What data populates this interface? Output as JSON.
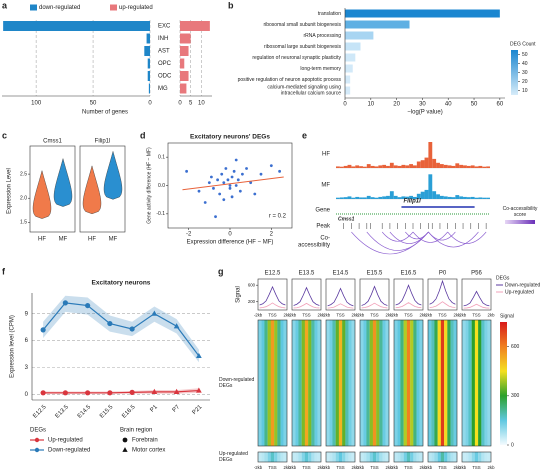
{
  "chart_data": [
    {
      "panel": "a",
      "type": "diverging_bar",
      "categories": [
        "EXC",
        "INH",
        "AST",
        "OPC",
        "ODC",
        "MG"
      ],
      "series": [
        {
          "name": "down-regulated",
          "color": "#1f86c8",
          "values": [
            129,
            3,
            5,
            2,
            2,
            1
          ]
        },
        {
          "name": "up-regulated",
          "color": "#e8787c",
          "values": [
            14,
            5,
            4,
            2,
            4,
            3
          ]
        }
      ],
      "xlim": [
        0,
        130
      ],
      "xticks": [
        100,
        50,
        0
      ],
      "x2lim": [
        0,
        15
      ],
      "x2ticks": [
        0,
        5,
        10
      ],
      "xlabel": "Number of genes"
    },
    {
      "panel": "b",
      "type": "hbar",
      "categories": [
        "translation",
        "ribosomal small subunit biogenesis",
        "rRNA processing",
        "ribosomal large subunit biogenesis",
        "regulation of neuronal synaptic plasticity",
        "long-term memory",
        "positive regulation of neuron apoptotic process",
        "calcium-mediated signaling using intracellular calcium source"
      ],
      "values": [
        60,
        25,
        11,
        6,
        4,
        3,
        2,
        2
      ],
      "colors": [
        "#1a86d0",
        "#5fb0e3",
        "#a8d5f2",
        "#c6e4f7",
        "#cfe8f8",
        "#d2e9f8",
        "#d4eaf9",
        "#d4eaf9"
      ],
      "xlim": [
        0,
        62
      ],
      "xticks": [
        0,
        10,
        20,
        30,
        40,
        50,
        60
      ],
      "xlabel": "−log(P value)",
      "legend_title": "DEG Count",
      "legend_ticks": [
        50,
        40,
        30,
        20,
        10
      ],
      "legend_lim": [
        5,
        55
      ],
      "legend_colors": [
        "#d6ecf9",
        "#1a86d0"
      ]
    },
    {
      "panel": "c",
      "type": "violin",
      "ylabel": "Expression Level",
      "groups": [
        "HF",
        "MF"
      ],
      "colors": [
        "#f07a4a",
        "#2a8fd0"
      ],
      "genes": [
        {
          "name": "Cmss1",
          "values": [
            1.95,
            2.2
          ]
        },
        {
          "name": "Filip1l",
          "values": [
            2.05,
            2.35
          ]
        }
      ],
      "ylim": [
        1.3,
        3.0
      ],
      "yticks": [
        1.5,
        {
          "value": 2,
          "label": "2.0"
        },
        2.5
      ]
    },
    {
      "panel": "d",
      "type": "scatter",
      "title": "Excitatory neurons' DEGs",
      "xlabel": "Expression difference (HF − MF)",
      "ylabel": "Gene activity difference (HF − MF)",
      "annotation": "r = 0.2",
      "color": "#3b6fd0",
      "x": [
        -2.1,
        -1.5,
        -1.2,
        -0.9,
        -0.8,
        -0.6,
        -0.5,
        -0.4,
        -0.3,
        -0.3,
        -0.2,
        -0.1,
        0,
        0.1,
        0.1,
        0.2,
        0.3,
        0.4,
        0.5,
        0.6,
        0.8,
        1.0,
        1.2,
        1.5,
        2.0,
        2.4,
        -0.7,
        0.3,
        -1.0,
        0.0
      ],
      "y": [
        0.05,
        -0.02,
        -0.06,
        0.03,
        -0.01,
        0.02,
        -0.03,
        0.04,
        0.01,
        -0.05,
        0.06,
        0.02,
        -0.01,
        0.03,
        -0.04,
        0.05,
        0.0,
        0.02,
        -0.02,
        0.04,
        0.06,
        0.01,
        -0.03,
        0.04,
        0.07,
        0.05,
        -0.11,
        0.09,
        0.01,
        0.0
      ],
      "trend": {
        "x": [
          -2.3,
          2.6
        ],
        "y": [
          -0.015,
          0.03
        ],
        "color": "#e8623a"
      },
      "xlim": [
        -3,
        3
      ],
      "xticks": [
        -2,
        0,
        2
      ],
      "ylim": [
        -0.15,
        0.15
      ],
      "yticks": [
        -0.1,
        {
          "value": 0,
          "label": "0.0"
        },
        0.1
      ]
    },
    {
      "panel": "e",
      "type": "track",
      "xlim": [
        0,
        40
      ],
      "ylim": [
        0,
        1
      ],
      "tracks": [
        {
          "name": "HF",
          "color": "#e8623a",
          "values": [
            0.06,
            0.05,
            0.08,
            0.12,
            0.06,
            0.1,
            0.07,
            0.05,
            0.15,
            0.08,
            0.06,
            0.1,
            0.12,
            0.08,
            0.2,
            0.1,
            0.08,
            0.12,
            0.1,
            0.15,
            0.1,
            0.25,
            0.3,
            0.4,
            1.0,
            0.35,
            0.2,
            0.15,
            0.12,
            0.1,
            0.08,
            0.18,
            0.12,
            0.1,
            0.08,
            0.1,
            0.06,
            0.08,
            0.05,
            0.06
          ]
        },
        {
          "name": "MF",
          "color": "#2a9fd6",
          "values": [
            0.05,
            0.06,
            0.07,
            0.1,
            0.05,
            0.08,
            0.06,
            0.06,
            0.12,
            0.07,
            0.05,
            0.08,
            0.1,
            0.12,
            0.3,
            0.12,
            0.07,
            0.1,
            0.09,
            0.12,
            0.08,
            0.2,
            0.28,
            0.35,
            0.95,
            0.3,
            0.18,
            0.12,
            0.1,
            0.08,
            0.07,
            0.15,
            0.1,
            0.08,
            0.07,
            0.08,
            0.05,
            0.06,
            0.05,
            0.05
          ]
        }
      ],
      "gene_label": "Gene",
      "peak_label": "Peak",
      "coaccess_label": "Co-accessibility",
      "genes": [
        {
          "name": "Filip1l",
          "start": 17,
          "end": 36,
          "color": "#2030b0"
        },
        {
          "name": "Cmss1",
          "start": 0,
          "end": 40,
          "color": "#2a9a3a"
        }
      ],
      "peaks": [
        2,
        4,
        6,
        8,
        9,
        12,
        14,
        16,
        18,
        20,
        22,
        24,
        25,
        27,
        29,
        31,
        33,
        35,
        37,
        39
      ],
      "links": [
        [
          4,
          24
        ],
        [
          8,
          24
        ],
        [
          14,
          24
        ],
        [
          18,
          24
        ],
        [
          24,
          31
        ],
        [
          24,
          37
        ],
        [
          12,
          20
        ],
        [
          20,
          29
        ],
        [
          29,
          39
        ]
      ],
      "link_color": "#8a5cd0",
      "legend_title": "Co-accessibility score",
      "legend_colors": [
        "#e6d6f5",
        "#6a2fb8"
      ]
    },
    {
      "panel": "f",
      "type": "line",
      "title": "Excitatory neurons",
      "ylabel": "Expression level (CPM)",
      "categories": [
        "E12.5",
        "E13.5",
        "E14.5",
        "E15.5",
        "E16.5",
        "P1",
        "P7",
        "P21"
      ],
      "markers": [
        "circle",
        "circle",
        "circle",
        "circle",
        "circle",
        "triangle",
        "triangle",
        "triangle"
      ],
      "series": [
        {
          "name": "Up-regulated",
          "color": "#d9363e",
          "values": [
            0.2,
            0.2,
            0.2,
            0.2,
            0.25,
            0.3,
            0.3,
            0.45
          ],
          "lower": [
            0.05,
            0.05,
            0.05,
            0.05,
            0.1,
            0.1,
            0.1,
            0.2
          ],
          "upper": [
            0.35,
            0.35,
            0.35,
            0.35,
            0.4,
            0.5,
            0.5,
            0.7
          ]
        },
        {
          "name": "Down-regulated",
          "color": "#2a7ab8",
          "values": [
            7.2,
            10.2,
            9.9,
            7.9,
            7.3,
            9.0,
            7.6,
            4.3
          ],
          "lower": [
            6.3,
            9.2,
            8.9,
            7.0,
            6.5,
            8.1,
            6.8,
            3.6
          ],
          "upper": [
            8.1,
            11.0,
            10.8,
            8.8,
            8.1,
            9.8,
            8.4,
            5.0
          ]
        }
      ],
      "ylim": [
        -0.6,
        11.3
      ],
      "yticks": [
        0,
        3,
        6,
        9
      ],
      "grid": true,
      "legend_title": "DEGs",
      "region_title": "Brain region",
      "regions": [
        {
          "name": "Forebrain",
          "marker": "circle"
        },
        {
          "name": "Motor cortex",
          "marker": "triangle"
        }
      ]
    },
    {
      "panel": "g",
      "type": "profile_heatmap",
      "columns": [
        "E12.5",
        "E13.5",
        "E14.5",
        "E15.5",
        "E16.5",
        "P0",
        "P56"
      ],
      "series": [
        {
          "name": "Down-regulated",
          "color": "#5b3aa0",
          "profiles": [
            [
              120,
              150,
              220,
              380,
              560,
              380,
              220,
              150,
              120
            ],
            [
              110,
              140,
              200,
              360,
              540,
              360,
              200,
              140,
              110
            ],
            [
              100,
              130,
              190,
              340,
              520,
              340,
              190,
              130,
              100
            ],
            [
              110,
              140,
              210,
              370,
              570,
              370,
              210,
              140,
              110
            ],
            [
              120,
              150,
              230,
              400,
              600,
              400,
              230,
              150,
              120
            ],
            [
              140,
              180,
              270,
              460,
              700,
              460,
              270,
              180,
              140
            ],
            [
              100,
              120,
              170,
              300,
              450,
              300,
              170,
              120,
              100
            ]
          ]
        },
        {
          "name": "Up-regulated",
          "color": "#f2a0b8",
          "profiles": [
            [
              50,
              60,
              80,
              120,
              170,
              120,
              80,
              60,
              50
            ],
            [
              50,
              55,
              75,
              115,
              160,
              115,
              75,
              55,
              50
            ],
            [
              45,
              55,
              70,
              110,
              150,
              110,
              70,
              55,
              45
            ],
            [
              50,
              60,
              80,
              120,
              165,
              120,
              80,
              60,
              50
            ],
            [
              55,
              65,
              85,
              130,
              180,
              130,
              85,
              65,
              55
            ],
            [
              60,
              70,
              95,
              145,
              200,
              145,
              95,
              70,
              60
            ],
            [
              45,
              50,
              65,
              100,
              140,
              100,
              65,
              50,
              45
            ]
          ]
        }
      ],
      "legend_title": "DEGs",
      "profile_label": "Signal",
      "ylim": [
        0,
        750
      ],
      "yticks": [
        200,
        600
      ],
      "xtick_labels": [
        "-2kb",
        "TSS",
        "2kb"
      ],
      "row_labels": [
        "Down-regulated DEGs",
        "Up-regulated DEGs"
      ],
      "colorbar_title": "Signal",
      "clim": [
        0,
        750
      ],
      "cticks": [
        0,
        300,
        600
      ],
      "colormap": [
        "#f4fbff",
        "#5fc8e0",
        "#2ca02c",
        "#f5e020",
        "#f08020",
        "#d81a1a"
      ]
    }
  ]
}
